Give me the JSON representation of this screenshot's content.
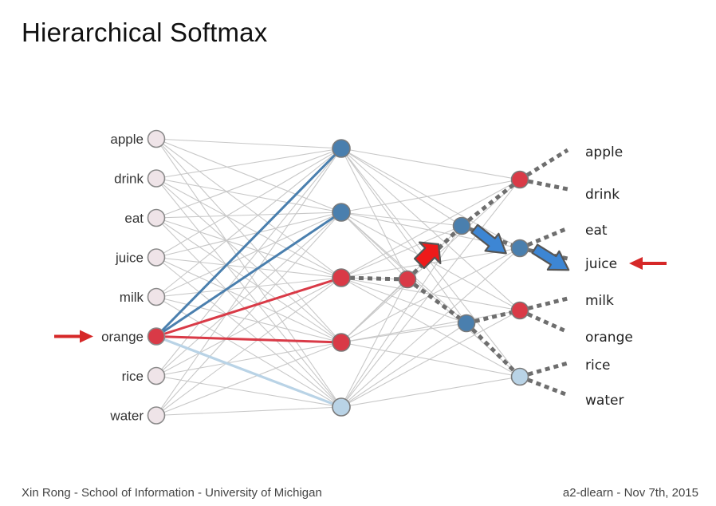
{
  "slide": {
    "title": "Hierarchical Softmax",
    "footer_left": "Xin Rong - School of Information - University of Michigan",
    "footer_right": "a2-dlearn - Nov 7th, 2015"
  },
  "network": {
    "input_words": [
      "apple",
      "drink",
      "eat",
      "juice",
      "milk",
      "orange",
      "rice",
      "water"
    ],
    "input_selected": "orange",
    "hidden_units": 5,
    "output_words": [
      "apple",
      "drink",
      "eat",
      "juice",
      "milk",
      "orange",
      "rice",
      "water"
    ],
    "output_target": "juice"
  },
  "colors": {
    "red": "#d93a47",
    "blue": "#4a7fae",
    "light_blue": "#b9d3e6",
    "input_node": "#efe4e8",
    "edge_gray": "#c8c8c8",
    "arrow_red": "#d62828",
    "arrow_blue": "#3d86d4"
  }
}
